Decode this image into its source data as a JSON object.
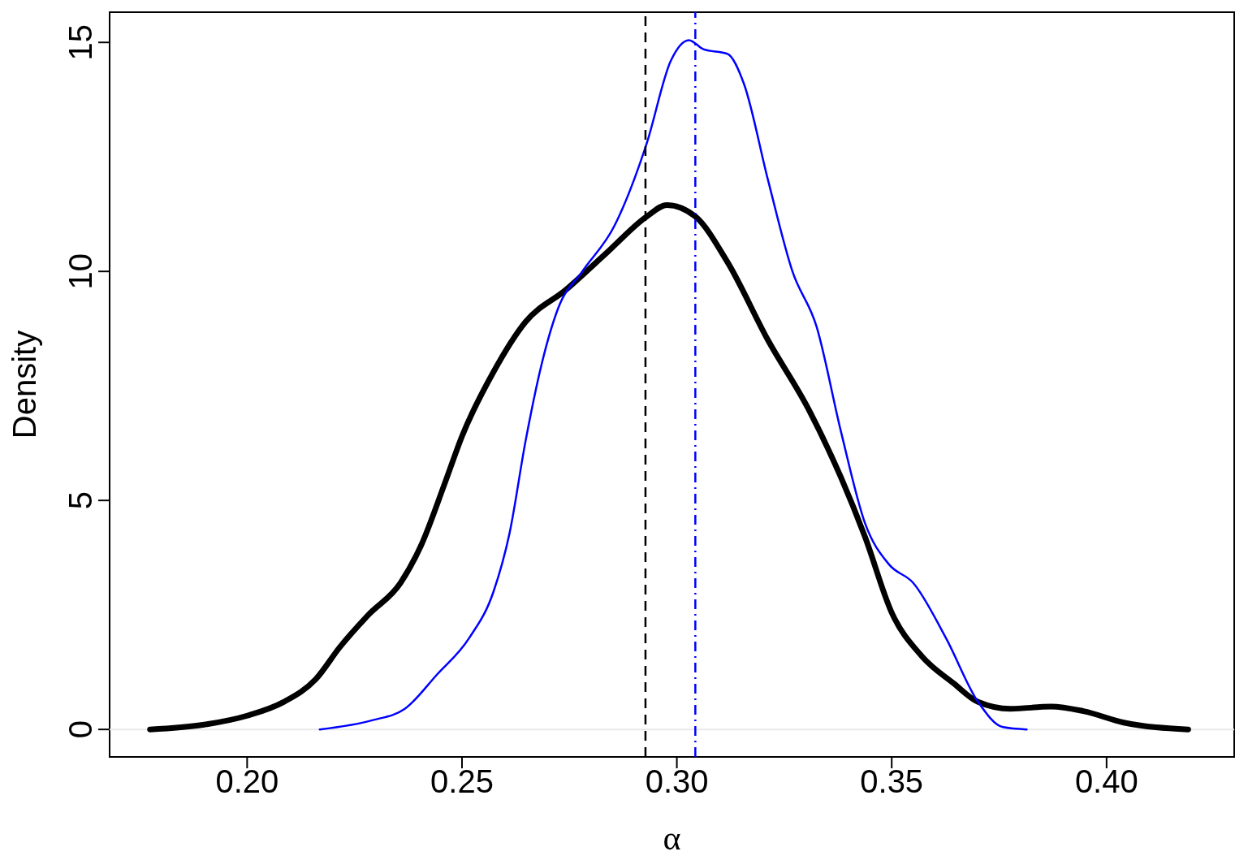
{
  "chart_data": {
    "type": "line",
    "xlabel": "α",
    "ylabel": "Density",
    "xlim": [
      0.168,
      0.4297
    ],
    "ylim": [
      -0.6,
      15.66
    ],
    "xticks": [
      {
        "value": 0.2,
        "label": "0.20"
      },
      {
        "value": 0.25,
        "label": "0.25"
      },
      {
        "value": 0.3,
        "label": "0.30"
      },
      {
        "value": 0.35,
        "label": "0.35"
      },
      {
        "value": 0.4,
        "label": "0.40"
      }
    ],
    "yticks": [
      0,
      5,
      10,
      15
    ],
    "grid": false,
    "legend": false,
    "marker": "none",
    "series": [
      {
        "color": "#000000",
        "line_style": "solid",
        "x": [
          0.1774,
          0.1897,
          0.2,
          0.2085,
          0.216,
          0.2216,
          0.2282,
          0.2357,
          0.2404,
          0.2461,
          0.25,
          0.2573,
          0.2648,
          0.2742,
          0.2836,
          0.293,
          0.2977,
          0.3043,
          0.3118,
          0.3212,
          0.3306,
          0.3382,
          0.3438,
          0.35,
          0.357,
          0.3645,
          0.3701,
          0.3776,
          0.3871,
          0.3946,
          0.404,
          0.419
        ],
        "values": [
          0,
          0.1,
          0.3,
          0.6,
          1.1,
          1.8,
          2.5,
          3.2,
          4.0,
          5.4,
          6.4,
          7.8,
          8.9,
          9.6,
          10.4,
          11.2,
          11.45,
          11.2,
          10.2,
          8.5,
          7.0,
          5.5,
          4.2,
          2.55,
          1.6,
          1.0,
          0.6,
          0.45,
          0.5,
          0.4,
          0.15,
          0
        ]
      },
      {
        "color": "#0000ff",
        "line_style": "solid",
        "x": [
          0.2169,
          0.2291,
          0.2367,
          0.2442,
          0.2517,
          0.2573,
          0.2611,
          0.2648,
          0.2686,
          0.2724,
          0.278,
          0.2855,
          0.293,
          0.2986,
          0.3028,
          0.3062,
          0.3118,
          0.3156,
          0.3212,
          0.3269,
          0.3325,
          0.3382,
          0.3438,
          0.3494,
          0.355,
          0.3626,
          0.3701,
          0.3759,
          0.3814
        ],
        "values": [
          0,
          0.2,
          0.45,
          1.2,
          2.0,
          3.0,
          4.3,
          6.3,
          8.0,
          9.2,
          10.0,
          11.0,
          12.8,
          14.6,
          15.05,
          14.85,
          14.75,
          14.1,
          12.0,
          10.0,
          8.8,
          6.5,
          4.5,
          3.6,
          3.2,
          2.0,
          0.6,
          0.05,
          0
        ]
      }
    ],
    "ref_lines": [
      {
        "axis": "y",
        "value": 0,
        "color": "#e8e8e8",
        "line_style": "solid"
      },
      {
        "axis": "x",
        "value": 0.2927,
        "color": "#000000",
        "line_style": "dashed"
      },
      {
        "axis": "x",
        "value": 0.3043,
        "color": "#0000ff",
        "line_style": "dashdot"
      }
    ]
  }
}
